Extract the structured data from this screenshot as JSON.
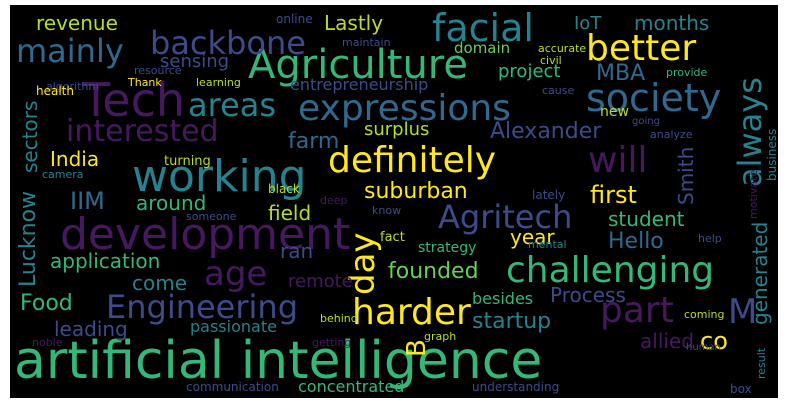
{
  "palette": {
    "background": "#000000",
    "purple": "#46195f",
    "indigo": "#3e4a8a",
    "blue": "#31688e",
    "teal": "#26828e",
    "green": "#35b779",
    "lightgreen": "#6ccd5a",
    "yellow": "#fde725",
    "chartreuse": "#b5de2b"
  },
  "words": {
    "artificial_intelligence": "artificial intelligence",
    "development": "development",
    "working": "working",
    "agriculture": "Agriculture",
    "tech": "Tech",
    "expressions": "expressions",
    "definitely": "definitely",
    "facial": "facial",
    "better": "better",
    "backbone": "backbone",
    "mainly": "mainly",
    "areas": "areas",
    "society": "society",
    "interested": "interested",
    "will": "will",
    "challenging": "challenging",
    "agritech": "Agritech",
    "engineering": "Engineering",
    "harder": "harder",
    "age": "age",
    "day": "day",
    "always": "always",
    "part": "part",
    "m": "M",
    "b": "B",
    "revenue": "revenue",
    "lastly": "Lastly",
    "sensing": "sensing",
    "online": "online",
    "iot": "IoT",
    "months": "months",
    "mba": "MBA",
    "project": "project",
    "maintain": "maintain",
    "domain": "domain",
    "accurate": "accurate",
    "civil": "civil",
    "algorithm": "algorithm",
    "resource": "resource",
    "thank": "Thank",
    "learning": "learning",
    "cause": "cause",
    "provide": "provide",
    "health": "health",
    "entrepreneurship": "entrepreneurship",
    "new": "new",
    "farm": "farm",
    "surplus": "surplus",
    "alexander": "Alexander",
    "india": "India",
    "turning": "turning",
    "black": "black",
    "analyze": "analyze",
    "going": "going",
    "lately": "lately",
    "first": "first",
    "suburban": "suburban",
    "smith": "Smith",
    "iim": "IIM",
    "around": "around",
    "student": "student",
    "field": "field",
    "someone": "someone",
    "deep": "deep",
    "know": "know",
    "camera": "camera",
    "motivate": "motivate",
    "business": "business",
    "lucknow": "Lucknow",
    "sectors": "sectors",
    "ran": "ran",
    "year": "year",
    "hello": "Hello",
    "application": "application",
    "fact": "fact",
    "strategy": "strategy",
    "help": "help",
    "mental": "mental",
    "come": "come",
    "remote": "remote",
    "founded": "founded",
    "generated": "generated",
    "food": "Food",
    "process": "Process",
    "leading": "leading",
    "startup": "startup",
    "co": "co",
    "passionate": "passionate",
    "besides": "besides",
    "allied": "allied",
    "behind": "behind",
    "coming": "coming",
    "noble": "noble",
    "graph": "graph",
    "getting": "getting",
    "human": "human",
    "result": "result",
    "communication": "communication",
    "concentrated": "concentrated",
    "understanding": "understanding",
    "box": "box"
  }
}
